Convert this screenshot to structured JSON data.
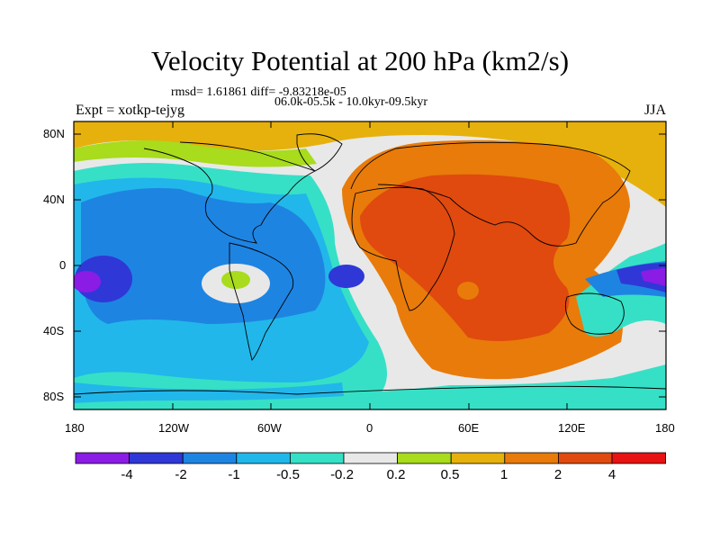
{
  "header": {
    "title": "Velocity Potential at 200 hPa (km2/s)",
    "stats": "rmsd= 1.61861 diff= -9.83218e-05",
    "period": "06.0k-05.5k - 10.0kyr-09.5kyr",
    "experiment": "Expt = xotkp-tejyg",
    "season": "JJA"
  },
  "axes": {
    "lat_labels": [
      "80N",
      "40N",
      "0",
      "40S",
      "80S"
    ],
    "lon_labels": [
      "180",
      "120W",
      "60W",
      "0",
      "60E",
      "120E",
      "180"
    ]
  },
  "colorbar": {
    "labels": [
      "-4",
      "-2",
      "-1",
      "-0.5",
      "-0.2",
      "0.2",
      "0.5",
      "1",
      "2",
      "4"
    ],
    "colors": [
      "#8a1ce6",
      "#2f38d6",
      "#1e84e2",
      "#21b7ea",
      "#36e0c6",
      "#e8e8e8",
      "#a8dc1c",
      "#e6b10c",
      "#e87b0a",
      "#e04a0e",
      "#e81212"
    ]
  }
}
